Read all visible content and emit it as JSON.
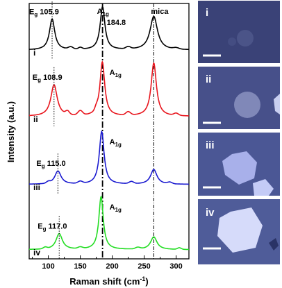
{
  "chart_data": {
    "type": "line",
    "xlabel": "Raman shift (cm",
    "xlabel_sup": "-1",
    "xlabel_end": ")",
    "ylabel": "Intensity (a.u.)",
    "xlim": [
      70,
      320
    ],
    "xticks": [
      100,
      150,
      200,
      250,
      300
    ],
    "ref_lines": [
      {
        "x": 184.8,
        "style": "dash-dot-bold"
      },
      {
        "x": 265,
        "style": "dash-dot"
      }
    ],
    "series": [
      {
        "name": "i",
        "color": "#000000",
        "eg_pos": 105.9,
        "eg_label": "105.9",
        "a1g_label": "184.8",
        "mica_label": "mica",
        "peaks": [
          [
            105.9,
            0.72,
            5
          ],
          [
            184.8,
            1.0,
            4.5
          ],
          [
            265,
            0.78,
            7
          ]
        ],
        "wiggles": [
          [
            135,
            0.05,
            5
          ],
          [
            150,
            0.04,
            4
          ],
          [
            225,
            0.05,
            5
          ],
          [
            300,
            0.03,
            6
          ]
        ]
      },
      {
        "name": "ii",
        "color": "#e8141c",
        "eg_pos": 108.9,
        "eg_label": "108.9",
        "peaks": [
          [
            108.9,
            0.58,
            6
          ],
          [
            184.5,
            1.0,
            4.5
          ],
          [
            265,
            0.98,
            5
          ]
        ],
        "wiggles": [
          [
            130,
            0.06,
            4
          ],
          [
            150,
            0.08,
            5
          ],
          [
            175,
            0.05,
            3
          ],
          [
            225,
            0.06,
            5
          ],
          [
            300,
            0.04,
            5
          ]
        ]
      },
      {
        "name": "iii",
        "color": "#1a1ad0",
        "eg_pos": 115.0,
        "eg_label": "115.0",
        "peaks": [
          [
            115.0,
            0.25,
            6
          ],
          [
            183.5,
            1.0,
            4.5
          ],
          [
            265,
            0.28,
            6
          ]
        ],
        "wiggles": [
          [
            100,
            0.03,
            4
          ],
          [
            150,
            0.04,
            5
          ],
          [
            230,
            0.04,
            5
          ],
          [
            290,
            0.03,
            5
          ]
        ]
      },
      {
        "name": "iv",
        "color": "#22dd22",
        "eg_pos": 117.0,
        "eg_label": "117.0",
        "peaks": [
          [
            117.0,
            0.3,
            6
          ],
          [
            182.5,
            1.0,
            4.2
          ],
          [
            265,
            0.24,
            6
          ]
        ],
        "wiggles": [
          [
            95,
            0.03,
            4
          ],
          [
            150,
            0.03,
            5
          ],
          [
            240,
            0.03,
            5
          ],
          [
            305,
            0.03,
            4
          ]
        ]
      }
    ],
    "peak_names": {
      "eg": "E",
      "eg_sub": "g",
      "a1g": "A",
      "a1g_sub": "1g"
    }
  },
  "images": [
    {
      "label": "i",
      "bg": "#3a4277"
    },
    {
      "label": "ii",
      "bg": "#47508a"
    },
    {
      "label": "iii",
      "bg": "#4b5795"
    },
    {
      "label": "iv",
      "bg": "#4f5c99"
    }
  ]
}
